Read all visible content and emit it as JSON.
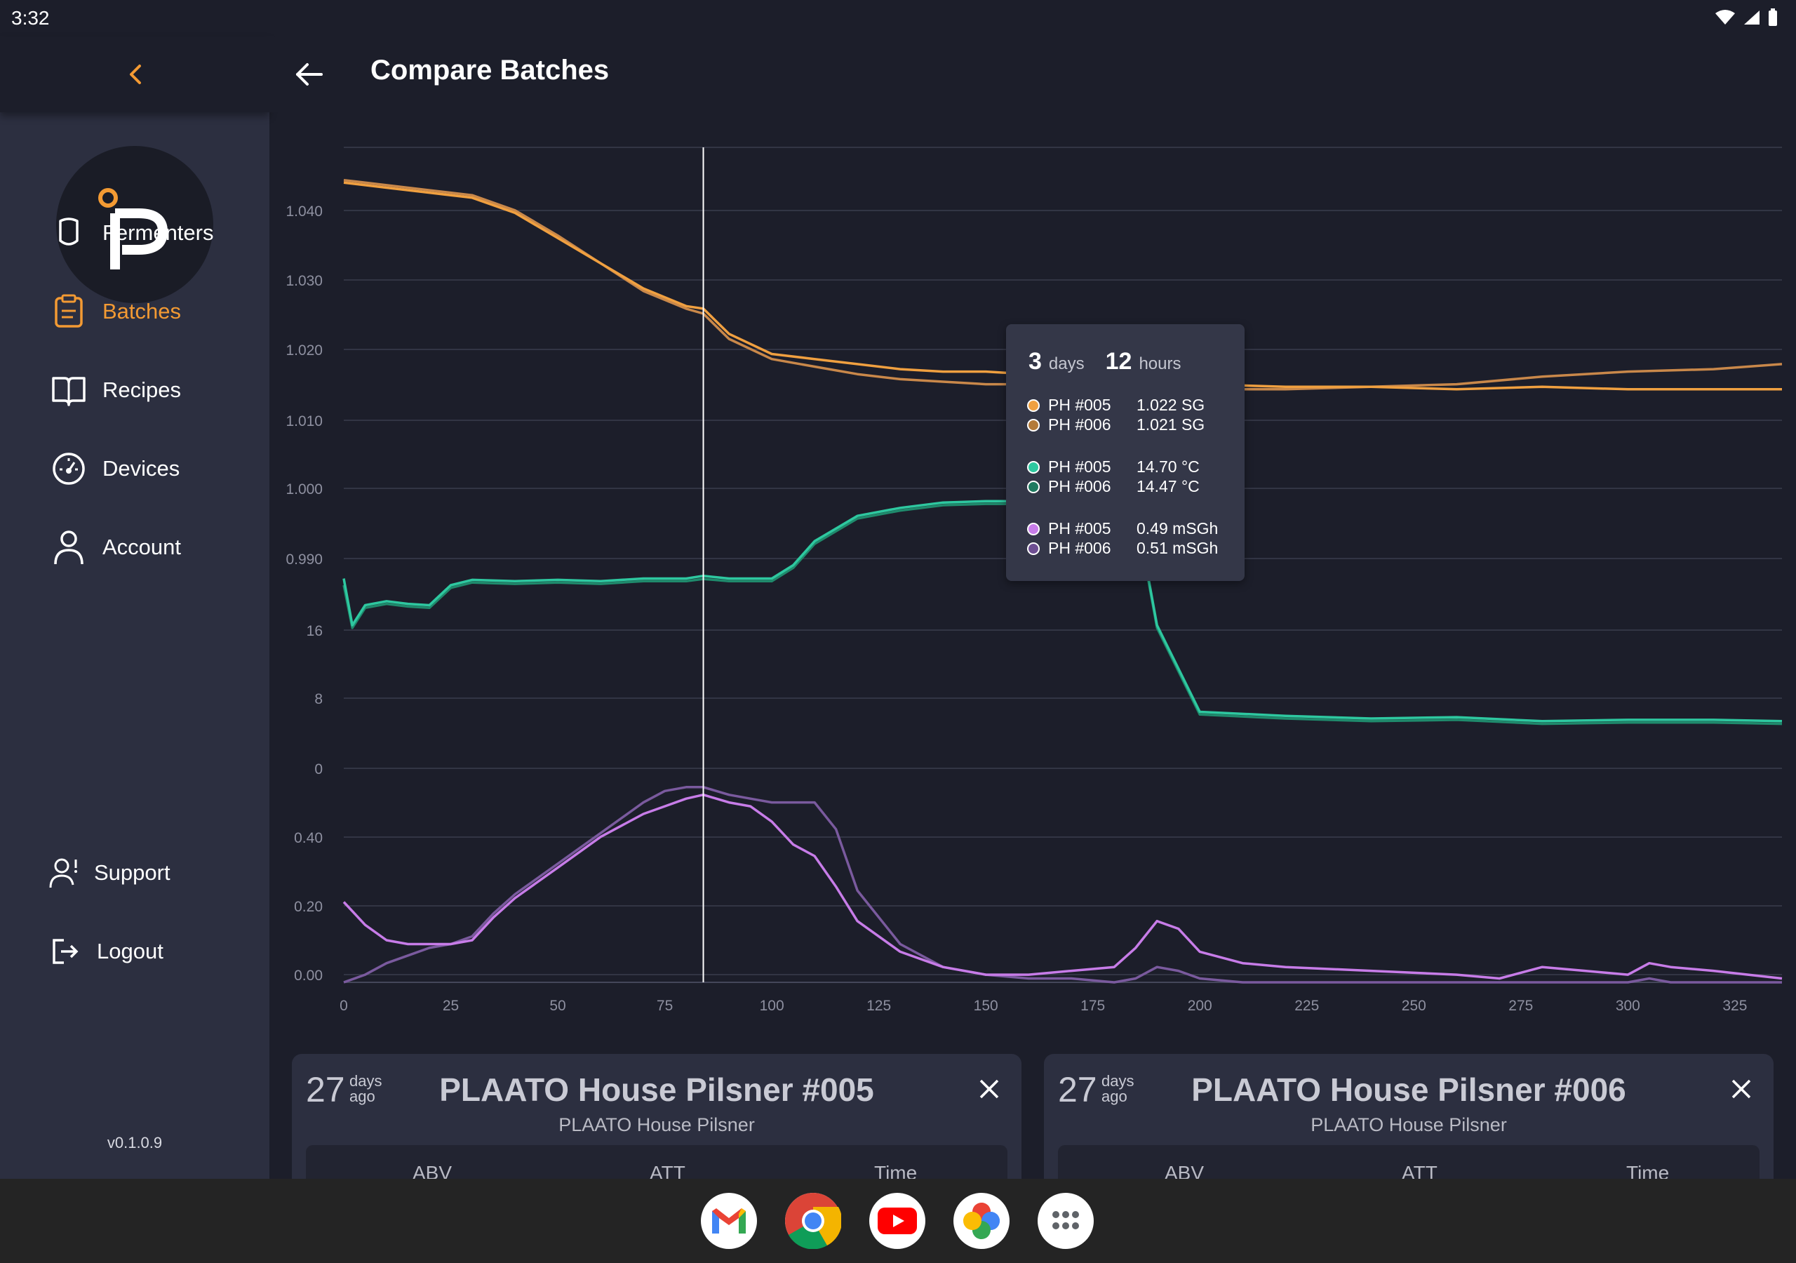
{
  "status_bar": {
    "time": "3:32"
  },
  "header": {
    "title": "Compare Batches"
  },
  "sidebar": {
    "items": [
      {
        "label": "Fermenters",
        "icon": "shield-icon",
        "active": false
      },
      {
        "label": "Batches",
        "icon": "clipboard-icon",
        "active": true
      },
      {
        "label": "Recipes",
        "icon": "book-icon",
        "active": false
      },
      {
        "label": "Devices",
        "icon": "gauge-icon",
        "active": false
      },
      {
        "label": "Account",
        "icon": "person-icon",
        "active": false
      }
    ],
    "bottom_items": [
      {
        "label": "Support",
        "icon": "support-icon"
      },
      {
        "label": "Logout",
        "icon": "logout-icon"
      }
    ],
    "version": "v0.1.0.9"
  },
  "colors": {
    "accent": "#f39a33",
    "sg_005": "#f0a040",
    "sg_006": "#c9884a",
    "temp_005": "#2ec8a0",
    "temp_006": "#1f8a6c",
    "bubble_005": "#c77ce8",
    "bubble_006": "#7a5a9e"
  },
  "tooltip": {
    "days": "3",
    "days_label": "days",
    "hours": "12",
    "hours_label": "hours",
    "groups": [
      [
        {
          "name": "PH #005",
          "value": "1.022 SG",
          "color": "#f0a040"
        },
        {
          "name": "PH #006",
          "value": "1.021 SG",
          "color": "#b37a3a"
        }
      ],
      [
        {
          "name": "PH #005",
          "value": "14.70 °C",
          "color": "#2ec8a0"
        },
        {
          "name": "PH #006",
          "value": "14.47 °C",
          "color": "#1f7a60"
        }
      ],
      [
        {
          "name": "PH #005",
          "value": "0.49 mSGh",
          "color": "#c77ce8"
        },
        {
          "name": "PH #006",
          "value": "0.51 mSGh",
          "color": "#6e4f92"
        }
      ]
    ]
  },
  "chart_data": {
    "type": "line",
    "x_ticks": [
      "0",
      "25",
      "50",
      "75",
      "100",
      "125",
      "150",
      "175",
      "200",
      "225",
      "250",
      "275",
      "300",
      "325"
    ],
    "xlim": [
      0,
      336
    ],
    "cursor_x": 84,
    "panels": [
      {
        "name": "gravity",
        "unit": "SG",
        "ylim": [
          0.983,
          1.054
        ],
        "y_ticks": [
          "1.040",
          "1.030",
          "1.020",
          "1.010",
          "1.000",
          "0.990"
        ],
        "series": [
          {
            "name": "PH #005",
            "color": "#f0a040",
            "x": [
              0,
              10,
              20,
              30,
              40,
              50,
              60,
              70,
              80,
              84,
              90,
              100,
              110,
              120,
              130,
              140,
              150,
              160,
              170,
              180,
              190,
              200,
              220,
              240,
              260,
              280,
              300,
              320,
              336
            ],
            "y": [
              1.047,
              1.046,
              1.045,
              1.044,
              1.041,
              1.036,
              1.031,
              1.026,
              1.0225,
              1.022,
              1.017,
              1.013,
              1.012,
              1.011,
              1.01,
              1.0095,
              1.0095,
              1.009,
              1.009,
              1.0085,
              1.007,
              1.007,
              1.0065,
              1.0065,
              1.006,
              1.0065,
              1.006,
              1.006,
              1.006
            ]
          },
          {
            "name": "PH #006",
            "color": "#c9884a",
            "x": [
              0,
              10,
              20,
              30,
              40,
              50,
              60,
              70,
              80,
              84,
              90,
              100,
              110,
              120,
              130,
              140,
              150,
              160,
              170,
              180,
              190,
              200,
              220,
              240,
              260,
              280,
              300,
              320,
              336
            ],
            "y": [
              1.0475,
              1.0465,
              1.0455,
              1.0445,
              1.0415,
              1.0365,
              1.031,
              1.0255,
              1.022,
              1.021,
              1.016,
              1.012,
              1.0105,
              1.009,
              1.008,
              1.0075,
              1.007,
              1.007,
              1.0065,
              1.0065,
              1.006,
              1.006,
              1.006,
              1.0065,
              1.007,
              1.0085,
              1.0095,
              1.01,
              1.011
            ]
          }
        ]
      },
      {
        "name": "temperature",
        "unit": "°C",
        "ylim": [
          0,
          20
        ],
        "y_ticks": [
          "16",
          "8",
          "0"
        ],
        "series": [
          {
            "name": "PH #005",
            "color": "#2ec8a0",
            "x": [
              0,
              2,
              5,
              10,
              15,
              20,
              25,
              30,
              40,
              50,
              60,
              70,
              80,
              84,
              90,
              100,
              105,
              110,
              120,
              130,
              140,
              150,
              160,
              170,
              172,
              175,
              180,
              185,
              190,
              200,
              220,
              240,
              260,
              280,
              300,
              320,
              336
            ],
            "y": [
              14.5,
              11,
              12.5,
              12.8,
              12.6,
              12.5,
              14,
              14.4,
              14.3,
              14.4,
              14.3,
              14.5,
              14.5,
              14.7,
              14.5,
              14.5,
              15.5,
              17.3,
              19.2,
              19.8,
              20.2,
              20.3,
              20.3,
              20.3,
              20.4,
              19.2,
              19.6,
              19.8,
              11,
              4.5,
              4.2,
              4.0,
              4.1,
              3.8,
              3.9,
              3.9,
              3.8
            ]
          },
          {
            "name": "PH #006",
            "color": "#1f8a6c",
            "x": [
              0,
              2,
              5,
              10,
              15,
              20,
              25,
              30,
              40,
              50,
              60,
              70,
              80,
              84,
              90,
              100,
              105,
              110,
              120,
              130,
              140,
              150,
              160,
              170,
              172,
              175,
              180,
              185,
              190,
              200,
              220,
              240,
              260,
              280,
              300,
              320,
              336
            ],
            "y": [
              14.0,
              10.8,
              12.3,
              12.6,
              12.4,
              12.3,
              13.8,
              14.2,
              14.1,
              14.2,
              14.1,
              14.3,
              14.3,
              14.47,
              14.3,
              14.3,
              15.3,
              17.1,
              19.0,
              19.6,
              20.0,
              20.1,
              20.1,
              20.1,
              20.2,
              19.0,
              19.4,
              19.6,
              10.8,
              4.3,
              4.0,
              3.8,
              3.9,
              3.6,
              3.7,
              3.7,
              3.6
            ]
          }
        ]
      },
      {
        "name": "bubbling",
        "unit": "mSGh",
        "ylim": [
          0,
          0.55
        ],
        "y_ticks": [
          "0.40",
          "0.20",
          "0.00"
        ],
        "series": [
          {
            "name": "PH #005",
            "color": "#c77ce8",
            "x": [
              0,
              5,
              10,
              15,
              20,
              25,
              30,
              35,
              40,
              50,
              60,
              70,
              75,
              80,
              84,
              90,
              95,
              100,
              105,
              110,
              115,
              120,
              130,
              140,
              150,
              160,
              170,
              180,
              185,
              190,
              195,
              200,
              210,
              220,
              240,
              260,
              270,
              280,
              290,
              300,
              305,
              310,
              320,
              336
            ],
            "y": [
              0.21,
              0.15,
              0.11,
              0.1,
              0.1,
              0.1,
              0.11,
              0.17,
              0.22,
              0.3,
              0.38,
              0.44,
              0.46,
              0.48,
              0.49,
              0.47,
              0.46,
              0.42,
              0.36,
              0.33,
              0.25,
              0.16,
              0.08,
              0.04,
              0.02,
              0.02,
              0.03,
              0.04,
              0.09,
              0.16,
              0.14,
              0.08,
              0.05,
              0.04,
              0.03,
              0.02,
              0.01,
              0.04,
              0.03,
              0.02,
              0.05,
              0.04,
              0.03,
              0.01
            ]
          },
          {
            "name": "PH #006",
            "color": "#7a5a9e",
            "x": [
              0,
              5,
              10,
              15,
              20,
              25,
              30,
              35,
              40,
              50,
              60,
              70,
              75,
              80,
              84,
              90,
              95,
              100,
              105,
              110,
              115,
              120,
              130,
              140,
              150,
              160,
              170,
              180,
              185,
              190,
              195,
              200,
              210,
              220,
              240,
              260,
              270,
              280,
              290,
              300,
              305,
              310,
              320,
              336
            ],
            "y": [
              0.0,
              0.02,
              0.05,
              0.07,
              0.09,
              0.1,
              0.12,
              0.18,
              0.23,
              0.31,
              0.39,
              0.47,
              0.5,
              0.51,
              0.51,
              0.49,
              0.48,
              0.47,
              0.47,
              0.47,
              0.4,
              0.24,
              0.1,
              0.04,
              0.02,
              0.01,
              0.01,
              0.0,
              0.01,
              0.04,
              0.03,
              0.01,
              0.0,
              0.0,
              0.0,
              0.0,
              0.0,
              0.0,
              0.0,
              0.0,
              0.01,
              0.0,
              0.0,
              0.0
            ]
          }
        ]
      }
    ]
  },
  "batch_cards": [
    {
      "days": "27",
      "days_label_1": "days",
      "days_label_2": "ago",
      "title": "PLAATO House Pilsner #005",
      "subtitle": "PLAATO House Pilsner",
      "stats": [
        "ABV",
        "ATT",
        "Time"
      ]
    },
    {
      "days": "27",
      "days_label_1": "days",
      "days_label_2": "ago",
      "title": "PLAATO House Pilsner #006",
      "subtitle": "PLAATO House Pilsner",
      "stats": [
        "ABV",
        "ATT",
        "Time"
      ]
    }
  ],
  "dock": [
    {
      "name": "gmail-icon"
    },
    {
      "name": "chrome-icon"
    },
    {
      "name": "youtube-icon"
    },
    {
      "name": "photos-icon"
    },
    {
      "name": "app-launcher-icon"
    }
  ]
}
